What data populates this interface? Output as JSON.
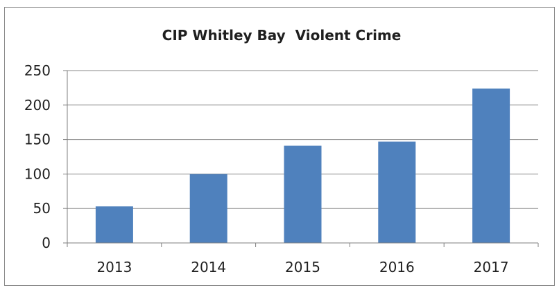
{
  "chart_data": {
    "type": "bar",
    "title": "CIP Whitley Bay  Violent Crime",
    "categories": [
      "2013",
      "2014",
      "2015",
      "2016",
      "2017"
    ],
    "values": [
      53,
      100,
      141,
      147,
      224
    ],
    "ylim": [
      0,
      250
    ],
    "yticks": [
      0,
      50,
      100,
      150,
      200,
      250
    ],
    "xlabel": "",
    "ylabel": "",
    "grid": true,
    "legend": "none",
    "colors": {
      "bar": "#4f81bd"
    }
  }
}
